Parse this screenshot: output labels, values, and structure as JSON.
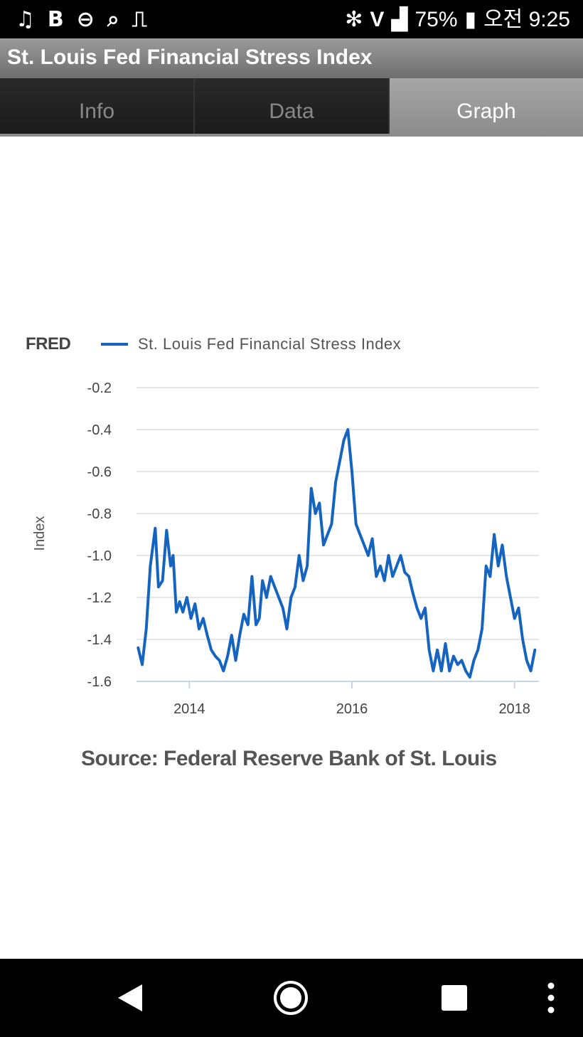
{
  "status_bar": {
    "left_icons": [
      "music-icon",
      "b-icon",
      "minus-circle-icon",
      "search-icon",
      "pulse-icon"
    ],
    "right_icons": [
      "bluetooth-icon",
      "volte-icon",
      "lte-signal-icon",
      "battery-icon"
    ],
    "battery": "75%",
    "time": "오전 9:25"
  },
  "header": {
    "title": "St. Louis Fed Financial Stress Index"
  },
  "tabs": [
    {
      "label": "Info",
      "active": false
    },
    {
      "label": "Data",
      "active": false
    },
    {
      "label": "Graph",
      "active": true
    }
  ],
  "chart": {
    "logo": "FRED",
    "source": "Source: Federal Reserve Bank of St. Louis"
  },
  "chart_data": {
    "type": "line",
    "title": "",
    "xlabel": "",
    "ylabel": "Index",
    "xlim": [
      2013.35,
      2018.3
    ],
    "ylim": [
      -1.6,
      -0.2
    ],
    "x_ticks": [
      2014,
      2016,
      2018
    ],
    "y_ticks": [
      -0.2,
      -0.4,
      -0.6,
      -0.8,
      -1.0,
      -1.2,
      -1.4,
      -1.6
    ],
    "grid": true,
    "legend": "top-left",
    "series": [
      {
        "name": "St. Louis Fed Financial Stress Index",
        "color": "#1565c0",
        "x": [
          2013.37,
          2013.42,
          2013.47,
          2013.52,
          2013.58,
          2013.62,
          2013.67,
          2013.72,
          2013.77,
          2013.8,
          2013.84,
          2013.88,
          2013.92,
          2013.97,
          2014.02,
          2014.07,
          2014.12,
          2014.17,
          2014.22,
          2014.27,
          2014.32,
          2014.37,
          2014.42,
          2014.47,
          2014.52,
          2014.57,
          2014.62,
          2014.67,
          2014.72,
          2014.77,
          2014.82,
          2014.86,
          2014.9,
          2014.95,
          2015.0,
          2015.05,
          2015.1,
          2015.15,
          2015.2,
          2015.25,
          2015.3,
          2015.35,
          2015.4,
          2015.45,
          2015.5,
          2015.55,
          2015.6,
          2015.65,
          2015.7,
          2015.75,
          2015.8,
          2015.85,
          2015.9,
          2015.95,
          2016.0,
          2016.05,
          2016.1,
          2016.15,
          2016.2,
          2016.25,
          2016.3,
          2016.35,
          2016.4,
          2016.45,
          2016.5,
          2016.55,
          2016.6,
          2016.65,
          2016.7,
          2016.75,
          2016.8,
          2016.85,
          2016.9,
          2016.95,
          2017.0,
          2017.05,
          2017.1,
          2017.15,
          2017.2,
          2017.25,
          2017.3,
          2017.35,
          2017.4,
          2017.45,
          2017.5,
          2017.55,
          2017.6,
          2017.65,
          2017.7,
          2017.75,
          2017.8,
          2017.85,
          2017.9,
          2017.95,
          2018.0,
          2018.05,
          2018.1,
          2018.15,
          2018.2,
          2018.25
        ],
        "values": [
          -1.44,
          -1.52,
          -1.35,
          -1.05,
          -0.87,
          -1.15,
          -1.12,
          -0.88,
          -1.05,
          -1.0,
          -1.27,
          -1.22,
          -1.27,
          -1.2,
          -1.3,
          -1.23,
          -1.35,
          -1.3,
          -1.38,
          -1.45,
          -1.48,
          -1.5,
          -1.55,
          -1.48,
          -1.38,
          -1.5,
          -1.38,
          -1.28,
          -1.33,
          -1.1,
          -1.33,
          -1.3,
          -1.12,
          -1.2,
          -1.1,
          -1.15,
          -1.2,
          -1.25,
          -1.35,
          -1.2,
          -1.15,
          -1.0,
          -1.12,
          -1.05,
          -0.68,
          -0.8,
          -0.75,
          -0.95,
          -0.9,
          -0.85,
          -0.65,
          -0.55,
          -0.45,
          -0.4,
          -0.6,
          -0.85,
          -0.9,
          -0.95,
          -1.0,
          -0.92,
          -1.1,
          -1.05,
          -1.12,
          -1.0,
          -1.1,
          -1.05,
          -1.0,
          -1.08,
          -1.1,
          -1.18,
          -1.25,
          -1.3,
          -1.25,
          -1.45,
          -1.55,
          -1.45,
          -1.55,
          -1.42,
          -1.55,
          -1.48,
          -1.52,
          -1.5,
          -1.55,
          -1.58,
          -1.5,
          -1.45,
          -1.35,
          -1.05,
          -1.1,
          -0.9,
          -1.05,
          -0.95,
          -1.1,
          -1.2,
          -1.3,
          -1.25,
          -1.4,
          -1.5,
          -1.55,
          -1.45
        ]
      }
    ]
  }
}
